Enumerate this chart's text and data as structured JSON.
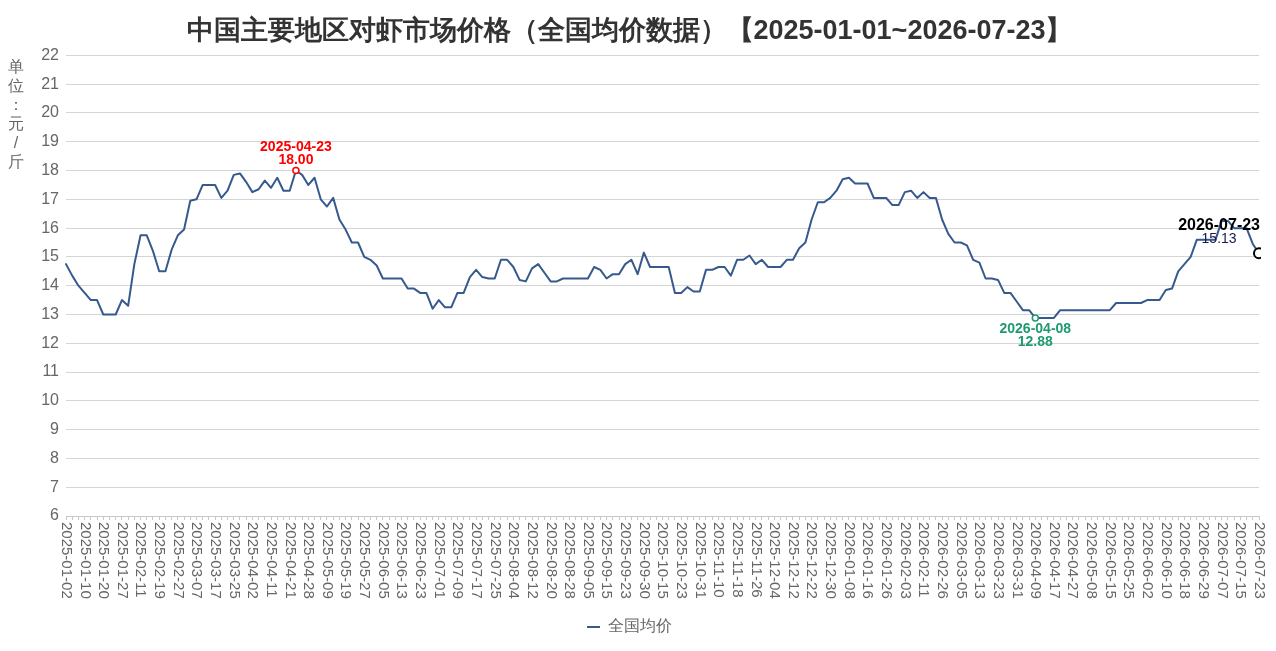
{
  "chart_data": {
    "type": "line",
    "title": "中国主要地区对虾市场价格（全国均价数据）【2025-01-01~2026-07-23】",
    "ylabel": "单位：元/斤",
    "categories": [
      "2025-01-02",
      null,
      null,
      "2025-01-10",
      null,
      null,
      "2025-01-20",
      null,
      null,
      "2025-01-27",
      null,
      null,
      "2025-02-11",
      null,
      null,
      "2025-02-19",
      null,
      null,
      "2025-02-27",
      null,
      null,
      "2025-03-07",
      null,
      null,
      "2025-03-17",
      null,
      null,
      "2025-03-25",
      null,
      null,
      "2025-04-02",
      null,
      null,
      "2025-04-11",
      null,
      null,
      "2025-04-21",
      null,
      null,
      "2025-04-28",
      null,
      null,
      "2025-05-09",
      null,
      null,
      "2025-05-19",
      null,
      null,
      "2025-05-27",
      null,
      null,
      "2025-06-05",
      null,
      null,
      "2025-06-13",
      null,
      null,
      "2025-06-23",
      null,
      null,
      "2025-07-01",
      null,
      null,
      "2025-07-09",
      null,
      null,
      "2025-07-17",
      null,
      null,
      "2025-07-25",
      null,
      null,
      "2025-08-04",
      null,
      null,
      "2025-08-12",
      null,
      null,
      "2025-08-20",
      null,
      null,
      "2025-08-28",
      null,
      null,
      "2025-09-05",
      null,
      null,
      "2025-09-15",
      null,
      null,
      "2025-09-23",
      null,
      null,
      "2025-09-30",
      null,
      null,
      "2025-10-15",
      null,
      null,
      "2025-10-23",
      null,
      null,
      "2025-10-31",
      null,
      null,
      "2025-11-10",
      null,
      null,
      "2025-11-18",
      null,
      null,
      "2025-11-26",
      null,
      null,
      "2025-12-04",
      null,
      null,
      "2025-12-12",
      null,
      null,
      "2025-12-22",
      null,
      null,
      "2025-12-30",
      null,
      null,
      "2026-01-08",
      null,
      null,
      "2026-01-16",
      null,
      null,
      "2026-01-26",
      null,
      null,
      "2026-02-03",
      null,
      null,
      "2026-02-11",
      null,
      null,
      "2026-02-26",
      null,
      null,
      "2026-03-05",
      null,
      null,
      "2026-03-13",
      null,
      null,
      "2026-03-23",
      null,
      null,
      "2026-03-31",
      null,
      null,
      "2026-04-09",
      null,
      null,
      "2026-04-17",
      null,
      null,
      "2026-04-27",
      null,
      null,
      "2026-05-08",
      null,
      null,
      "2026-05-15",
      null,
      null,
      "2026-05-25",
      null,
      null,
      "2026-06-02",
      null,
      null,
      "2026-06-10",
      null,
      null,
      "2026-06-18",
      null,
      null,
      "2026-06-29",
      null,
      null,
      "2026-07-07",
      null,
      null,
      "2026-07-15",
      null,
      null,
      "2026-07-23"
    ],
    "series": [
      {
        "name": "全国均价",
        "color": "#36598e",
        "values": [
          14.75,
          14.35,
          14.0,
          13.75,
          13.5,
          13.5,
          13.0,
          13.0,
          13.0,
          13.5,
          13.3,
          14.75,
          15.75,
          15.75,
          15.2,
          14.5,
          14.5,
          15.25,
          15.75,
          15.95,
          16.95,
          17.0,
          17.5,
          17.5,
          17.5,
          17.05,
          17.3,
          17.85,
          17.9,
          17.6,
          17.25,
          17.35,
          17.65,
          17.4,
          17.75,
          17.3,
          17.3,
          18.0,
          17.85,
          17.5,
          17.75,
          17.0,
          16.75,
          17.05,
          16.3,
          15.95,
          15.5,
          15.5,
          15.0,
          14.9,
          14.7,
          14.25,
          14.25,
          14.25,
          14.25,
          13.9,
          13.9,
          13.75,
          13.75,
          13.2,
          13.5,
          13.25,
          13.25,
          13.75,
          13.75,
          14.3,
          14.55,
          14.3,
          14.25,
          14.25,
          14.9,
          14.9,
          14.65,
          14.2,
          14.15,
          14.6,
          14.75,
          14.45,
          14.15,
          14.15,
          14.25,
          14.25,
          14.25,
          14.25,
          14.25,
          14.65,
          14.55,
          14.25,
          14.4,
          14.4,
          14.75,
          14.9,
          14.4,
          15.15,
          14.65,
          14.65,
          14.65,
          14.65,
          13.75,
          13.75,
          13.95,
          13.8,
          13.8,
          14.55,
          14.55,
          14.65,
          14.65,
          14.35,
          14.9,
          14.9,
          15.05,
          14.75,
          14.9,
          14.65,
          14.65,
          14.65,
          14.9,
          14.9,
          15.3,
          15.5,
          16.3,
          16.9,
          16.9,
          17.05,
          17.3,
          17.7,
          17.75,
          17.55,
          17.55,
          17.55,
          17.05,
          17.05,
          17.05,
          16.8,
          16.8,
          17.25,
          17.3,
          17.05,
          17.25,
          17.05,
          17.05,
          16.3,
          15.8,
          15.5,
          15.5,
          15.4,
          14.9,
          14.8,
          14.25,
          14.25,
          14.2,
          13.75,
          13.75,
          13.45,
          13.15,
          13.15,
          12.88,
          12.88,
          12.88,
          12.88,
          13.15,
          13.15,
          13.15,
          13.15,
          13.15,
          13.15,
          13.15,
          13.15,
          13.15,
          13.4,
          13.4,
          13.4,
          13.4,
          13.4,
          13.5,
          13.5,
          13.5,
          13.85,
          13.9,
          14.5,
          14.75,
          15.0,
          15.6,
          15.6,
          15.6,
          15.6,
          16.25,
          16.25,
          16.0,
          16.0,
          16.0,
          15.45,
          15.13
        ]
      }
    ],
    "ylim": [
      6,
      22
    ],
    "yticks": [
      6,
      7,
      8,
      9,
      10,
      11,
      12,
      13,
      14,
      15,
      16,
      17,
      18,
      19,
      20,
      21,
      22
    ],
    "grid": "y",
    "legend": "bottom",
    "annotations": [
      {
        "text": "2025-04-23\n18.00",
        "y": 18.0
      },
      {
        "text": "2026-04-08\n12.88",
        "y": 12.88
      },
      {
        "text": "2026-07-23\n15.13",
        "x": "2026-07-23",
        "y": 15.13
      }
    ]
  }
}
